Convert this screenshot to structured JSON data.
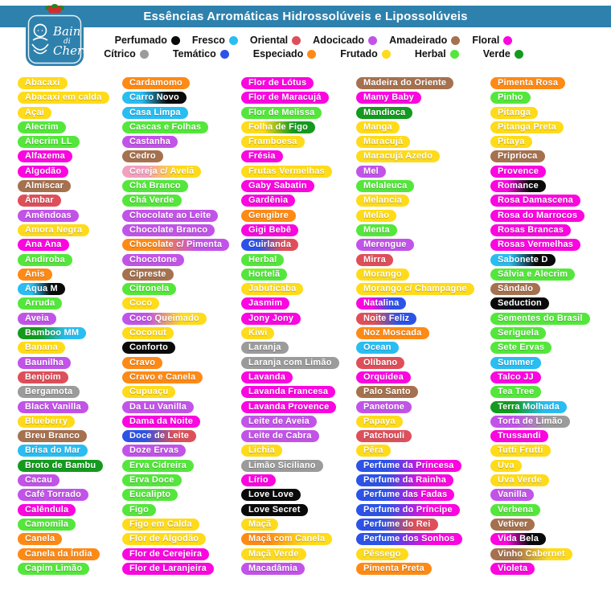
{
  "header": {
    "title": "Essências Arromáticas Hidrossolúveis e Lipossolúveis"
  },
  "logo": {
    "brand": "Bain di Chero",
    "line1": "Bain",
    "line2": "di",
    "line3": "Chero"
  },
  "colors": {
    "header_bg": "#2E81AD",
    "page_bg": "#FFFFFF",
    "pill_text": "#FFFFFF",
    "legend_text": "#121212"
  },
  "palette": {
    "perfumado": "#0A0A0A",
    "fresco": "#29BDF2",
    "oriental": "#DE4F5A",
    "adocicado": "#C253E8",
    "amadeirado": "#A6714E",
    "floral": "#FB06E0",
    "citrico": "#9B9B9B",
    "tematico": "#2C52E8",
    "especiado": "#FE8A16",
    "frutado": "#FFDB19",
    "herbal": "#54E73B",
    "verde": "#149A1E",
    "rosa": "#F2A0BE"
  },
  "legend": {
    "rows": [
      [
        {
          "label": "Perfumado",
          "category": "perfumado"
        },
        {
          "label": "Fresco",
          "category": "fresco"
        },
        {
          "label": "Oriental",
          "category": "oriental"
        },
        {
          "label": "Adocicado",
          "category": "adocicado"
        },
        {
          "label": "Amadeirado",
          "category": "amadeirado"
        },
        {
          "label": "Floral",
          "category": "floral"
        }
      ],
      [
        {
          "label": "Cítrico",
          "category": "citrico"
        },
        {
          "label": "Temático",
          "category": "tematico"
        },
        {
          "label": "Especiado",
          "category": "especiado"
        },
        {
          "label": "Frutado",
          "category": "frutado"
        },
        {
          "label": "Herbal",
          "category": "herbal"
        },
        {
          "label": "Verde",
          "category": "verde"
        }
      ]
    ]
  },
  "columns": [
    [
      {
        "label": "Abacaxi",
        "category": "frutado"
      },
      {
        "label": "Abacaxi em calda",
        "category": "frutado"
      },
      {
        "label": "Açai",
        "category": "frutado"
      },
      {
        "label": "Alecrim",
        "category": "herbal"
      },
      {
        "label": "Alecrim LL",
        "category": "herbal"
      },
      {
        "label": "Alfazema",
        "category": "floral"
      },
      {
        "label": "Algodão",
        "category": "floral"
      },
      {
        "label": "Almíscar",
        "category": "amadeirado"
      },
      {
        "label": "Âmbar",
        "category": "oriental"
      },
      {
        "label": "Amêndoas",
        "category": "adocicado"
      },
      {
        "label": "Amora Negra",
        "category": "frutado"
      },
      {
        "label": "Ana Ana",
        "category": "floral"
      },
      {
        "label": "Andiroba",
        "category": "herbal"
      },
      {
        "label": "Anis",
        "category": "especiado"
      },
      {
        "label": "Aqua M",
        "category": [
          "fresco",
          "perfumado"
        ]
      },
      {
        "label": "Arruda",
        "category": "herbal"
      },
      {
        "label": "Aveia",
        "category": "adocicado"
      },
      {
        "label": "Bamboo MM",
        "category": [
          "verde",
          "fresco"
        ]
      },
      {
        "label": "Banana",
        "category": "frutado"
      },
      {
        "label": "Baunilha",
        "category": "adocicado"
      },
      {
        "label": "Benjoim",
        "category": "oriental"
      },
      {
        "label": "Bergamota",
        "category": "citrico"
      },
      {
        "label": "Black Vanilla",
        "category": "adocicado"
      },
      {
        "label": "Blueberry",
        "category": "frutado"
      },
      {
        "label": "Breu Branco",
        "category": "amadeirado"
      },
      {
        "label": "Brisa do Mar",
        "category": "fresco"
      },
      {
        "label": "Broto de Bambu",
        "category": "verde"
      },
      {
        "label": "Cacau",
        "category": "adocicado"
      },
      {
        "label": "Café Torrado",
        "category": "adocicado"
      },
      {
        "label": "Calêndula",
        "category": "floral"
      },
      {
        "label": "Camomila",
        "category": "herbal"
      },
      {
        "label": "Canela",
        "category": "especiado"
      },
      {
        "label": "Canela da Índia",
        "category": "especiado"
      },
      {
        "label": "Capim Limão",
        "category": "herbal"
      }
    ],
    [
      {
        "label": "Cardamomo",
        "category": "especiado"
      },
      {
        "label": "Carro Novo",
        "category": [
          "fresco",
          "perfumado"
        ]
      },
      {
        "label": "Casa Limpa",
        "category": "fresco"
      },
      {
        "label": "Cascas e Folhas",
        "category": "herbal"
      },
      {
        "label": "Castanha",
        "category": "adocicado"
      },
      {
        "label": "Cedro",
        "category": "amadeirado"
      },
      {
        "label": "Cereja c/ Avelã",
        "category": [
          "rosa",
          "frutado"
        ]
      },
      {
        "label": "Chá Branco",
        "category": "herbal"
      },
      {
        "label": "Chá Verde",
        "category": "herbal"
      },
      {
        "label": "Chocolate ao Leite",
        "category": "adocicado"
      },
      {
        "label": "Chocolate Branco",
        "category": "adocicado"
      },
      {
        "label": "Chocolate c/ Pimenta",
        "category": [
          "especiado",
          "adocicado"
        ]
      },
      {
        "label": "Chocotone",
        "category": "adocicado"
      },
      {
        "label": "Cipreste",
        "category": "amadeirado"
      },
      {
        "label": "Citronela",
        "category": "herbal"
      },
      {
        "label": "Coco",
        "category": "frutado"
      },
      {
        "label": "Coco Queimado",
        "category": [
          "adocicado",
          "frutado"
        ]
      },
      {
        "label": "Coconut",
        "category": "frutado"
      },
      {
        "label": "Conforto",
        "category": "perfumado"
      },
      {
        "label": "Cravo",
        "category": "especiado"
      },
      {
        "label": "Cravo e Canela",
        "category": "especiado"
      },
      {
        "label": "Cupuaçu",
        "category": "frutado"
      },
      {
        "label": "Da Lu Vanilla",
        "category": "adocicado"
      },
      {
        "label": "Dama da Noite",
        "category": "floral"
      },
      {
        "label": "Doce de Leite",
        "category": [
          "tematico",
          "oriental"
        ]
      },
      {
        "label": "Doze Ervas",
        "category": "adocicado"
      },
      {
        "label": "Erva Cidreira",
        "category": "herbal"
      },
      {
        "label": "Erva Doce",
        "category": "herbal"
      },
      {
        "label": "Eucalipto",
        "category": "herbal"
      },
      {
        "label": "Figo",
        "category": "herbal"
      },
      {
        "label": "Figo em Calda",
        "category": "frutado"
      },
      {
        "label": "Flor de Algodão",
        "category": "frutado"
      },
      {
        "label": "Flor de Cerejeira",
        "category": "floral"
      },
      {
        "label": "Flor de Laranjeira",
        "category": "floral"
      }
    ],
    [
      {
        "label": "Flor de Lótus",
        "category": "floral"
      },
      {
        "label": "Flor de Maracujá",
        "category": "floral"
      },
      {
        "label": "Flor de Melissa",
        "category": "herbal"
      },
      {
        "label": "Folha de Figo",
        "category": [
          "frutado",
          "verde"
        ]
      },
      {
        "label": "Framboesa",
        "category": "frutado"
      },
      {
        "label": "Frésia",
        "category": "floral"
      },
      {
        "label": "Frutas Vermelhas",
        "category": "frutado"
      },
      {
        "label": "Gaby Sabatin",
        "category": "floral"
      },
      {
        "label": "Gardênia",
        "category": "floral"
      },
      {
        "label": "Gengibre",
        "category": "especiado"
      },
      {
        "label": "Gigi Bebê",
        "category": "floral"
      },
      {
        "label": "Guirlanda",
        "category": [
          "tematico",
          "oriental"
        ]
      },
      {
        "label": "Herbal",
        "category": "herbal"
      },
      {
        "label": "Hortelã",
        "category": "herbal"
      },
      {
        "label": "Jabuticaba",
        "category": "frutado"
      },
      {
        "label": "Jasmim",
        "category": "floral"
      },
      {
        "label": "Jony Jony",
        "category": "floral"
      },
      {
        "label": "Kiwi",
        "category": "frutado"
      },
      {
        "label": "Laranja",
        "category": "citrico"
      },
      {
        "label": "Laranja com Limão",
        "category": "citrico"
      },
      {
        "label": "Lavanda",
        "category": "floral"
      },
      {
        "label": "Lavanda Francesa",
        "category": "floral"
      },
      {
        "label": "Lavanda Provence",
        "category": "floral"
      },
      {
        "label": "Leite de Aveia",
        "category": "adocicado"
      },
      {
        "label": "Leite de Cabra",
        "category": "adocicado"
      },
      {
        "label": "Lichia",
        "category": "frutado"
      },
      {
        "label": "Limão Siciliano",
        "category": "citrico"
      },
      {
        "label": "Lírio",
        "category": "floral"
      },
      {
        "label": "Love Love",
        "category": "perfumado"
      },
      {
        "label": "Love Secret",
        "category": "perfumado"
      },
      {
        "label": "Maçã",
        "category": "frutado"
      },
      {
        "label": "Maçã com Canela",
        "category": [
          "especiado",
          "frutado"
        ]
      },
      {
        "label": "Maçã Verde",
        "category": "frutado"
      },
      {
        "label": "Macadâmia",
        "category": "adocicado"
      }
    ],
    [
      {
        "label": "Madeira do Oriente",
        "category": "amadeirado"
      },
      {
        "label": "Mamy Baby",
        "category": "floral"
      },
      {
        "label": "Mandioca",
        "category": "verde"
      },
      {
        "label": "Manga",
        "category": "frutado"
      },
      {
        "label": "Maracujá",
        "category": "frutado"
      },
      {
        "label": "Maracujá Azedo",
        "category": "frutado"
      },
      {
        "label": "Mel",
        "category": "adocicado"
      },
      {
        "label": "Melaleuca",
        "category": "herbal"
      },
      {
        "label": "Melancia",
        "category": "frutado"
      },
      {
        "label": "Melão",
        "category": "frutado"
      },
      {
        "label": "Menta",
        "category": "herbal"
      },
      {
        "label": "Merengue",
        "category": "adocicado"
      },
      {
        "label": "Mirra",
        "category": "oriental"
      },
      {
        "label": "Morango",
        "category": "frutado"
      },
      {
        "label": "Morango c/ Champagne",
        "category": "frutado"
      },
      {
        "label": "Natalina",
        "category": [
          "floral",
          "tematico"
        ]
      },
      {
        "label": "Noite Feliz",
        "category": [
          "oriental",
          "tematico"
        ]
      },
      {
        "label": "Noz Moscada",
        "category": "especiado"
      },
      {
        "label": "Ocean",
        "category": "fresco"
      },
      {
        "label": "Olíbano",
        "category": "oriental"
      },
      {
        "label": "Orquidea",
        "category": "floral"
      },
      {
        "label": "Palo Santo",
        "category": "amadeirado"
      },
      {
        "label": "Panetone",
        "category": "adocicado"
      },
      {
        "label": "Papaya",
        "category": "frutado"
      },
      {
        "label": "Patchouli",
        "category": "oriental"
      },
      {
        "label": "Pêra",
        "category": "frutado"
      },
      {
        "label": "Perfume da Princesa",
        "category": [
          "tematico",
          "floral"
        ]
      },
      {
        "label": "Perfume da Rainha",
        "category": [
          "tematico",
          "floral"
        ]
      },
      {
        "label": "Perfume das Fadas",
        "category": [
          "tematico",
          "floral"
        ]
      },
      {
        "label": "Perfume do Príncipe",
        "category": [
          "tematico",
          "floral"
        ]
      },
      {
        "label": "Perfume do Rei",
        "category": [
          "tematico",
          "oriental"
        ]
      },
      {
        "label": "Perfume dos Sonhos",
        "category": [
          "tematico",
          "floral"
        ]
      },
      {
        "label": "Pêssego",
        "category": "frutado"
      },
      {
        "label": "Pimenta Preta",
        "category": "especiado"
      }
    ],
    [
      {
        "label": "Pimenta Rosa",
        "category": "especiado"
      },
      {
        "label": "Pinho",
        "category": "herbal"
      },
      {
        "label": "Pitanga",
        "category": "frutado"
      },
      {
        "label": "Pitanga Preta",
        "category": "frutado"
      },
      {
        "label": "Pitaya",
        "category": "frutado"
      },
      {
        "label": "Priprioca",
        "category": "amadeirado"
      },
      {
        "label": "Provence",
        "category": "floral"
      },
      {
        "label": "Romance",
        "category": [
          "floral",
          "perfumado"
        ]
      },
      {
        "label": "Rosa Damascena",
        "category": "floral"
      },
      {
        "label": "Rosa do Marrocos",
        "category": "floral"
      },
      {
        "label": "Rosas Brancas",
        "category": "floral"
      },
      {
        "label": "Rosas Vermelhas",
        "category": "floral"
      },
      {
        "label": "Sabonete D",
        "category": [
          "fresco",
          "perfumado"
        ]
      },
      {
        "label": "Sálvia e Alecrim",
        "category": "herbal"
      },
      {
        "label": "Sândalo",
        "category": "amadeirado"
      },
      {
        "label": "Seduction",
        "category": "perfumado"
      },
      {
        "label": "Sementes do Brasil",
        "category": "herbal"
      },
      {
        "label": "Seriguela",
        "category": "herbal"
      },
      {
        "label": "Sete Ervas",
        "category": "herbal"
      },
      {
        "label": "Summer",
        "category": "fresco"
      },
      {
        "label": "Talco JJ",
        "category": "floral"
      },
      {
        "label": "Tea Tree",
        "category": "herbal"
      },
      {
        "label": "Terra Molhada",
        "category": [
          "verde",
          "fresco"
        ]
      },
      {
        "label": "Torta de Limão",
        "category": [
          "adocicado",
          "citrico"
        ]
      },
      {
        "label": "Trussandi",
        "category": "floral"
      },
      {
        "label": "Tutti Frutti",
        "category": "frutado"
      },
      {
        "label": "Uva",
        "category": "frutado"
      },
      {
        "label": "Uva Verde",
        "category": "frutado"
      },
      {
        "label": "Vanilla",
        "category": "adocicado"
      },
      {
        "label": "Verbena",
        "category": "herbal"
      },
      {
        "label": "Vetiver",
        "category": "amadeirado"
      },
      {
        "label": "Vida Bela",
        "category": [
          "floral",
          "perfumado"
        ]
      },
      {
        "label": "Vinho Cabernet",
        "category": [
          "amadeirado",
          "frutado"
        ]
      },
      {
        "label": "Violeta",
        "category": "floral"
      }
    ]
  ]
}
